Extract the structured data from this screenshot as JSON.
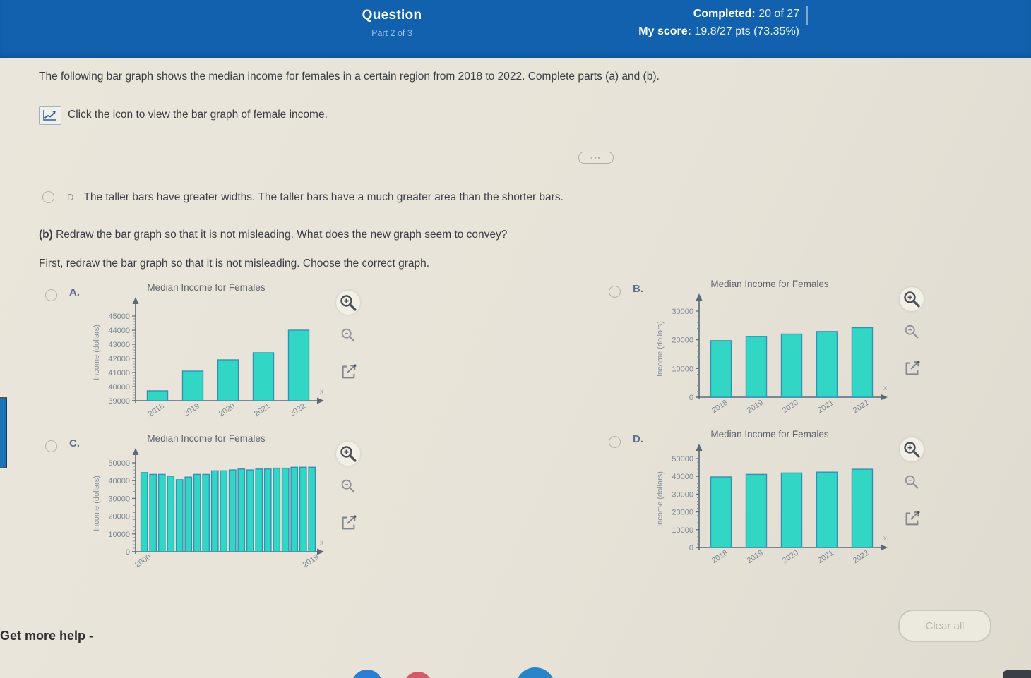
{
  "header": {
    "title": "Question",
    "subtitle": "Part 2 of 3",
    "completed_label": "Completed:",
    "completed_value": "20 of 27",
    "score_label": "My score:",
    "score_value": "19.8/27 pts (73.35%)"
  },
  "question": {
    "text": "The following bar graph shows the median income for females in a certain region from 2018 to 2022. Complete parts (a) and (b).",
    "icon": "bar-graph-icon",
    "icon_hint": "Click the icon to view the bar graph of female income."
  },
  "part_a": {
    "option_letter": "D",
    "option_text": "The taller bars have greater widths. The taller bars have a much greater area than the shorter bars."
  },
  "part_b": {
    "prefix": "(b)",
    "prompt": " Redraw the bar graph so that it is not misleading. What does the new graph seem to convey?",
    "instruction": "First, redraw the bar graph so that it is not misleading. Choose the correct graph."
  },
  "icons": [
    "zoom-in-icon",
    "zoom-icon",
    "open-in-new-window-icon",
    "bar-graph-icon"
  ],
  "chart_data": [
    {
      "option": "A.",
      "type": "bar",
      "title": "Median Income for Females",
      "ylabel": "Income (dollars)",
      "xlabel": "",
      "categories": [
        "2018",
        "2019",
        "2020",
        "2021",
        "2022"
      ],
      "values": [
        39700,
        41100,
        41900,
        42400,
        44000
      ],
      "ylim": [
        39000,
        45000
      ],
      "ytick_step": 1000,
      "xlabels": "all",
      "axis_end_mark": "x"
    },
    {
      "option": "B.",
      "type": "bar",
      "title": "Median Income for Females",
      "ylabel": "Income (dollars)",
      "xlabel": "",
      "categories": [
        "2018",
        "2019",
        "2020",
        "2021",
        "2022"
      ],
      "values": [
        19700,
        21200,
        22000,
        22900,
        24200
      ],
      "ylim": [
        0,
        30000
      ],
      "ytick_step": 10000,
      "xlabels": "all",
      "axis_end_mark": "x"
    },
    {
      "option": "C.",
      "type": "bar",
      "title": "Median Income for Females",
      "ylabel": "Income (dollars)",
      "xlabel": "",
      "categories": [
        "2000",
        "2001",
        "2002",
        "2003",
        "2004",
        "2005",
        "2006",
        "2007",
        "2008",
        "2009",
        "2010",
        "2011",
        "2012",
        "2013",
        "2014",
        "2015",
        "2016",
        "2017",
        "2018",
        "2019"
      ],
      "values": [
        44500,
        43500,
        43500,
        42500,
        40500,
        42000,
        43500,
        43500,
        45500,
        45500,
        46000,
        46500,
        46000,
        46500,
        46500,
        47000,
        47000,
        47500,
        47500,
        47500
      ],
      "ylim": [
        0,
        50000
      ],
      "ytick_step": 10000,
      "xlabels": "ends",
      "axis_end_mark": "x"
    },
    {
      "option": "D.",
      "type": "bar",
      "title": "Median Income for Females",
      "ylabel": "Income (dollars)",
      "xlabel": "",
      "categories": [
        "2018",
        "2019",
        "2020",
        "2021",
        "2022"
      ],
      "values": [
        39700,
        41100,
        41900,
        42400,
        44000
      ],
      "ylim": [
        0,
        50000
      ],
      "ytick_step": 10000,
      "xlabels": "all",
      "axis_end_mark": "x"
    }
  ],
  "footer": {
    "help_label": "Get more help -",
    "clear_button": "Clear all"
  },
  "colors": {
    "header_bg": "#1161ae",
    "page_bg": "#e8e4d9",
    "bar_fill": "#31d7c4",
    "bar_stroke": "#3491b4",
    "axis": "#5a6a78"
  }
}
